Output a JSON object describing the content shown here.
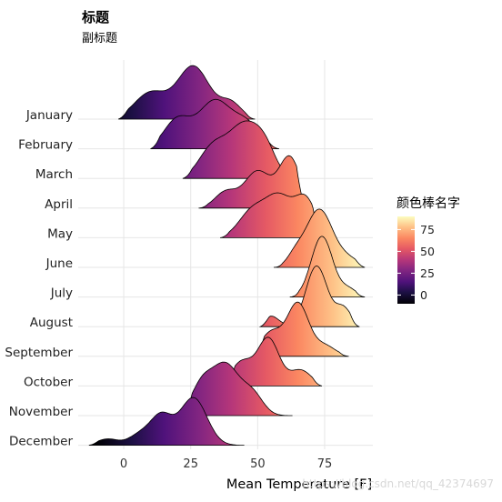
{
  "chart_data": {
    "type": "ridgeline",
    "title": "标题",
    "subtitle": "副标题",
    "xlabel": "Mean Temperature [F]",
    "ylabel": "",
    "xlim": [
      -17,
      93
    ],
    "x_ticks": [
      0,
      25,
      50,
      75
    ],
    "grid": true,
    "legend": {
      "title": "颜色棒名字",
      "placement": "right",
      "colormap": "magma",
      "range": [
        -10,
        90
      ],
      "ticks": [
        0,
        25,
        50,
        75
      ]
    },
    "categories": [
      "January",
      "February",
      "March",
      "April",
      "May",
      "June",
      "July",
      "August",
      "September",
      "October",
      "November",
      "December"
    ],
    "series": [
      {
        "name": "January",
        "range": [
          -2,
          49
        ],
        "peaks": [
          [
            10,
            6,
            0.5
          ],
          [
            26,
            6,
            1.0
          ],
          [
            40,
            4,
            0.3
          ]
        ]
      },
      {
        "name": "February",
        "range": [
          10,
          58
        ],
        "peaks": [
          [
            20,
            5,
            0.55
          ],
          [
            34,
            6,
            0.9
          ],
          [
            46,
            5,
            0.45
          ]
        ]
      },
      {
        "name": "March",
        "range": [
          22,
          63
        ],
        "peaks": [
          [
            33,
            5,
            0.55
          ],
          [
            45,
            6,
            1.0
          ],
          [
            53,
            4,
            0.4
          ]
        ]
      },
      {
        "name": "April",
        "range": [
          28,
          68
        ],
        "peaks": [
          [
            38,
            4,
            0.3
          ],
          [
            50,
            5,
            0.7
          ],
          [
            62,
            4,
            0.95
          ]
        ]
      },
      {
        "name": "May",
        "range": [
          36,
          74
        ],
        "peaks": [
          [
            48,
            5,
            0.5
          ],
          [
            58,
            5,
            0.75
          ],
          [
            68,
            4,
            0.7
          ]
        ]
      },
      {
        "name": "June",
        "range": [
          56,
          90
        ],
        "peaks": [
          [
            64,
            3,
            0.2
          ],
          [
            73,
            5,
            1.1
          ],
          [
            84,
            4,
            0.15
          ]
        ]
      },
      {
        "name": "July",
        "range": [
          62,
          90
        ],
        "peaks": [
          [
            74,
            4,
            1.15
          ],
          [
            84,
            3,
            0.15
          ]
        ]
      },
      {
        "name": "August",
        "range": [
          51,
          88
        ],
        "peaks": [
          [
            55,
            3,
            0.2
          ],
          [
            72,
            4,
            1.15
          ],
          [
            82,
            3,
            0.35
          ]
        ]
      },
      {
        "name": "September",
        "range": [
          49,
          84
        ],
        "peaks": [
          [
            55,
            4,
            0.45
          ],
          [
            65,
            4,
            1.0
          ],
          [
            75,
            4,
            0.2
          ]
        ]
      },
      {
        "name": "October",
        "range": [
          38,
          74
        ],
        "peaks": [
          [
            44,
            4,
            0.45
          ],
          [
            54,
            4,
            0.9
          ],
          [
            66,
            4,
            0.3
          ]
        ]
      },
      {
        "name": "November",
        "range": [
          22,
          63
        ],
        "peaks": [
          [
            29,
            4,
            0.55
          ],
          [
            38,
            5,
            0.95
          ],
          [
            48,
            4,
            0.4
          ]
        ]
      },
      {
        "name": "December",
        "range": [
          -13,
          45
        ],
        "peaks": [
          [
            -6,
            4,
            0.12
          ],
          [
            6,
            4,
            0.2
          ],
          [
            14,
            4,
            0.55
          ],
          [
            26,
            5,
            0.9
          ]
        ]
      }
    ]
  },
  "watermark": "https://blog.csdn.net/qq_42374697"
}
